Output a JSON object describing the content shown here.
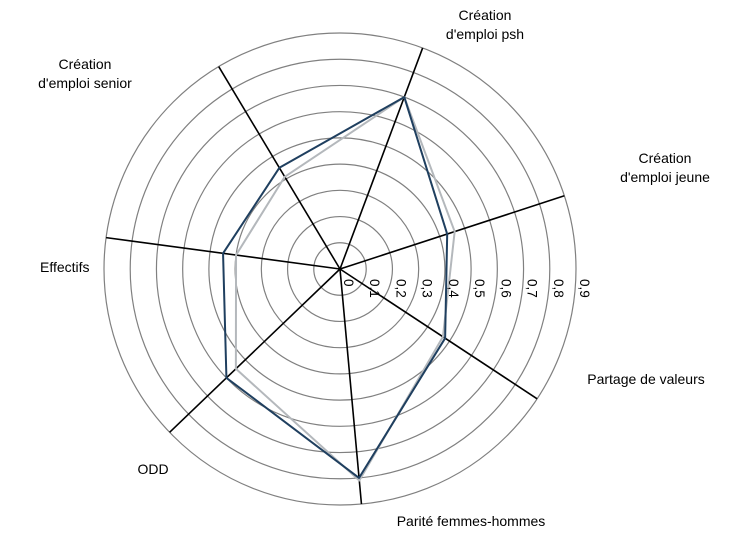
{
  "chart_data": {
    "type": "radar",
    "title": "",
    "axes": [
      {
        "label_lines": [
          "Création",
          "d'emploi psh"
        ]
      },
      {
        "label_lines": [
          "Création",
          "d'emploi jeune"
        ]
      },
      {
        "label_lines": [
          "Partage de valeurs"
        ]
      },
      {
        "label_lines": [
          "Parité femmes-hommes"
        ]
      },
      {
        "label_lines": [
          "ODD"
        ]
      },
      {
        "label_lines": [
          "Effectifs"
        ]
      },
      {
        "label_lines": [
          "Création",
          "d'emploi senior"
        ]
      }
    ],
    "radial_ticks": [
      "0",
      "0,1",
      "0,2",
      "0,3",
      "0,4",
      "0,5",
      "0,6",
      "0,7",
      "0,8",
      "0,9"
    ],
    "rmin": 0,
    "rmax": 0.9,
    "grid": true,
    "legend": "none",
    "series": [
      {
        "color": "#1f3f5f",
        "values": [
          0.7,
          0.43,
          0.48,
          0.8,
          0.6,
          0.45,
          0.45
        ]
      },
      {
        "color": "#b4b8bc",
        "values": [
          0.7,
          0.46,
          0.47,
          0.81,
          0.55,
          0.4,
          0.41
        ]
      }
    ]
  }
}
